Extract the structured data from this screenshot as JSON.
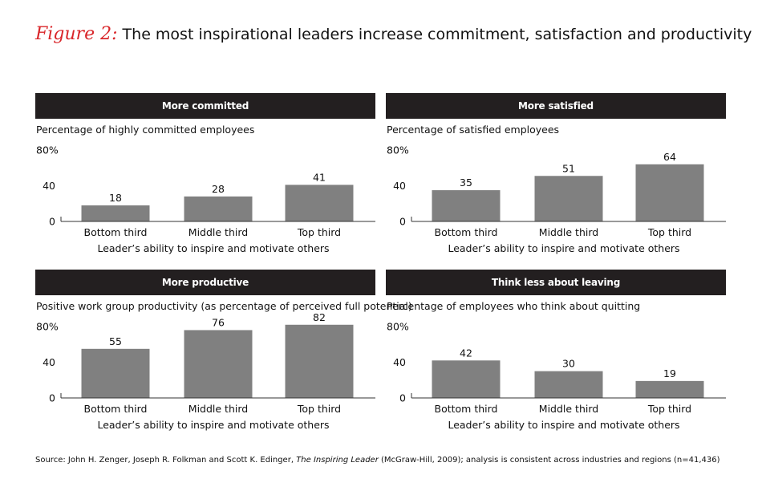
{
  "title": {
    "figure_label": "Figure 2:",
    "text": "The most inspirational leaders increase commitment, satisfaction and productivity",
    "figure_color": "#d9262a"
  },
  "colors": {
    "header_bg": "#231f20",
    "bar": "#808080",
    "axis": "#333333"
  },
  "chart_data": [
    {
      "type": "bar",
      "title": "More committed",
      "ylabel": "Percentage of highly committed employees",
      "xlabel": "Leader’s ability to inspire and motivate others",
      "categories": [
        "Bottom third",
        "Middle third",
        "Top third"
      ],
      "values": [
        18,
        28,
        41
      ],
      "value_labels": [
        "18",
        "28",
        "41"
      ],
      "yticks": [
        "0",
        "40",
        "80%"
      ],
      "ylim": [
        0,
        80
      ]
    },
    {
      "type": "bar",
      "title": "More satisfied",
      "ylabel": "Percentage of satisfied employees",
      "xlabel": "Leader’s ability to inspire and motivate others",
      "categories": [
        "Bottom third",
        "Middle third",
        "Top third"
      ],
      "values": [
        35,
        51,
        64
      ],
      "value_labels": [
        "35",
        "51",
        "64"
      ],
      "yticks": [
        "0",
        "40",
        "80%"
      ],
      "ylim": [
        0,
        80
      ]
    },
    {
      "type": "bar",
      "title": "More productive",
      "ylabel": "Positive work group productivity (as percentage of perceived full potential)",
      "xlabel": "Leader’s ability to inspire and motivate others",
      "categories": [
        "Bottom third",
        "Middle third",
        "Top third"
      ],
      "values": [
        55,
        76,
        82
      ],
      "value_labels": [
        "55",
        "76",
        "82"
      ],
      "yticks": [
        "0",
        "40",
        "80%"
      ],
      "ylim": [
        0,
        80
      ]
    },
    {
      "type": "bar",
      "title": "Think less about leaving",
      "ylabel": "Percentage of employees who think about quitting",
      "xlabel": "Leader’s ability to inspire and motivate others",
      "categories": [
        "Bottom third",
        "Middle third",
        "Top third"
      ],
      "values": [
        42,
        30,
        19
      ],
      "value_labels": [
        "42",
        "30",
        "19"
      ],
      "yticks": [
        "0",
        "40",
        "80%"
      ],
      "ylim": [
        0,
        80
      ]
    }
  ],
  "source": {
    "prefix": "Source: John H. Zenger, Joseph R. Folkman and Scott K. Edinger, ",
    "book": "The Inspiring Leader",
    "suffix": " (McGraw-Hill, 2009); analysis is consistent across industries and regions (n=41,436)"
  }
}
